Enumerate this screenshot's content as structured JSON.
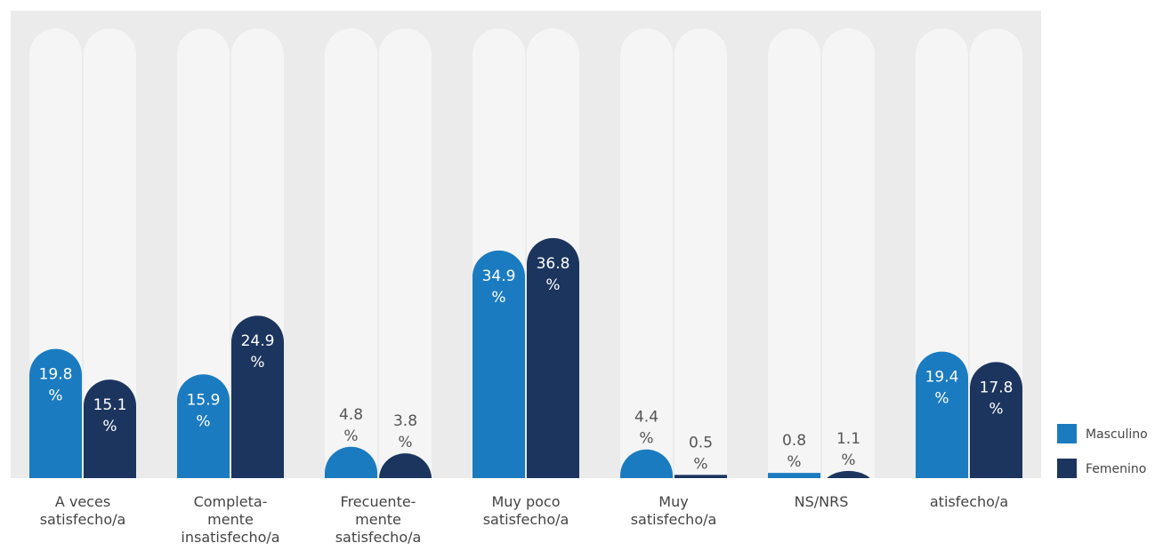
{
  "chart_data": {
    "type": "bar",
    "categories": [
      "A veces\nsatisfecho/a",
      "Completa-\nmente\ninsatisfecho/a",
      "Frecuente-\nmente\nsatisfecho/a",
      "Muy poco\nsatisfecho/a",
      "Muy\nsatisfecho/a",
      "NS/NRS",
      "atisfecho/a"
    ],
    "series": [
      {
        "name": "Masculino",
        "color": "#1b7bc0",
        "values": [
          19.8,
          15.9,
          4.8,
          34.9,
          4.4,
          0.8,
          19.4
        ],
        "value_labels": [
          "19.8 %",
          "15.9 %",
          "4.8 %",
          "34.9 %",
          "4.4 %",
          "0.8 %",
          "19.4 %"
        ]
      },
      {
        "name": "Femenino",
        "color": "#1c355e",
        "values": [
          15.1,
          24.9,
          3.8,
          36.8,
          0.5,
          1.1,
          17.8
        ],
        "value_labels": [
          "15.1 %",
          "24.9 %",
          "3.8 %",
          "36.8 %",
          "0.5 %",
          "1.1 %",
          "17.8 %"
        ]
      }
    ],
    "legend": "right"
  }
}
